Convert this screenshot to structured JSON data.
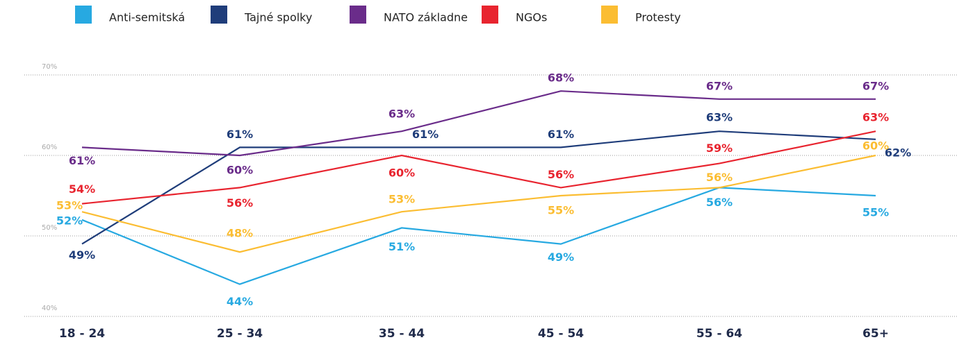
{
  "chart_data": {
    "type": "line",
    "categories": [
      "18 - 24",
      "25 - 34",
      "35 - 44",
      "45 - 54",
      "55 - 64",
      "65+"
    ],
    "series": [
      {
        "name": "Anti-semitská",
        "color": "#27a9e1",
        "values": [
          52,
          44,
          51,
          49,
          56,
          55
        ],
        "value_labels": [
          "52%",
          "44%",
          "51%",
          "49%",
          "56%",
          "55%"
        ]
      },
      {
        "name": "Tajné spolky",
        "color": "#1f3d7a",
        "values": [
          49,
          61,
          61,
          61,
          63,
          62
        ],
        "value_labels": [
          "49%",
          "61%",
          "61%",
          "61%",
          "63%",
          "62%"
        ]
      },
      {
        "name": "NATO základne",
        "color": "#6a2c8a",
        "values": [
          61,
          60,
          63,
          68,
          67,
          67
        ],
        "value_labels": [
          "61%",
          "60%",
          "63%",
          "68%",
          "67%",
          "67%"
        ]
      },
      {
        "name": "NGOs",
        "color": "#e8242f",
        "values": [
          54,
          56,
          60,
          56,
          59,
          63
        ],
        "value_labels": [
          "54%",
          "56%",
          "60%",
          "56%",
          "59%",
          "63%"
        ]
      },
      {
        "name": "Protesty",
        "color": "#fbbd32",
        "values": [
          53,
          48,
          53,
          55,
          56,
          60
        ],
        "value_labels": [
          "53%",
          "48%",
          "53%",
          "55%",
          "56%",
          "60%"
        ]
      }
    ],
    "ylim": [
      40,
      70
    ],
    "yticks": [
      {
        "value": 40,
        "label": "40%"
      },
      {
        "value": 50,
        "label": "50%"
      },
      {
        "value": 60,
        "label": "60%"
      },
      {
        "value": 70,
        "label": "70%"
      }
    ],
    "grid": true,
    "legend": "top"
  }
}
